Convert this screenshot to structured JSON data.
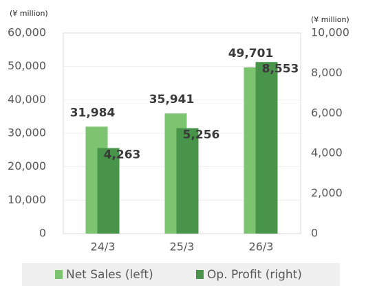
{
  "chart_data": {
    "type": "bar",
    "y_label": "(¥ million)",
    "y2_label": "(¥ million)",
    "categories": [
      "24/3",
      "25/3",
      "26/3"
    ],
    "series": [
      {
        "name": "Net Sales (left)",
        "color": "#7dc471",
        "values": [
          31984,
          35941,
          49701
        ],
        "value_labels": [
          "31,984",
          "35,941",
          "49,701"
        ]
      },
      {
        "name": "Op. Profit (right)",
        "color": "#47944a",
        "axis": "y2",
        "values": [
          4263,
          5256,
          8553
        ],
        "value_labels": [
          "4,263",
          "5,256",
          "8,553"
        ]
      }
    ],
    "ylim": [
      0,
      60000
    ],
    "yticks": [
      0,
      {
        "value": 10000,
        "label": "10,000"
      },
      {
        "value": 20000,
        "label": "20,000"
      },
      {
        "value": 30000,
        "label": "30,000"
      },
      {
        "value": 40000,
        "label": "40,000"
      },
      {
        "value": 50000,
        "label": "50,000"
      },
      {
        "value": 60000,
        "label": "60,000"
      }
    ],
    "y2lim": [
      0,
      10000
    ],
    "y2ticks": [
      0,
      {
        "value": 2000,
        "label": "2,000"
      },
      {
        "value": 4000,
        "label": "4,000"
      },
      {
        "value": 6000,
        "label": "6,000"
      },
      {
        "value": 8000,
        "label": "8,000"
      },
      {
        "value": 10000,
        "label": "10,000"
      }
    ],
    "grid": true,
    "legend": "bottom"
  }
}
